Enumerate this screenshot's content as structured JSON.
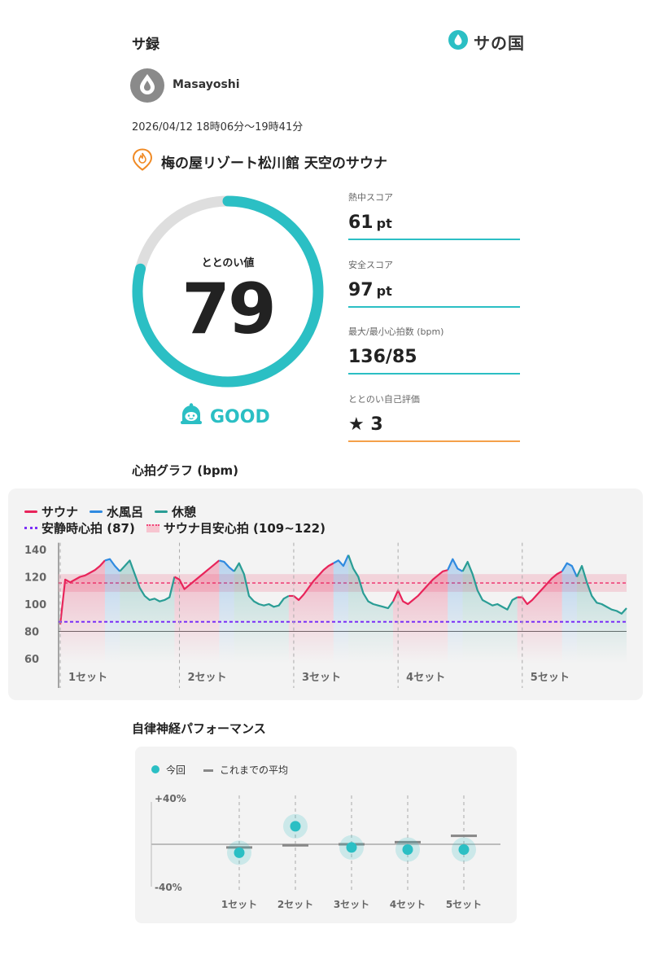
{
  "header": {
    "title": "サ録",
    "brand_name": "サの国",
    "brand_icon": "water-drop-icon"
  },
  "user": {
    "name": "Masayoshi",
    "avatar_icon": "water-drop-icon"
  },
  "session": {
    "datetime": "2026/04/12 18時06分〜19時41分",
    "facility_icon": "fire-pin-icon",
    "facility": "梅の屋リゾート松川館 天空のサウナ"
  },
  "score": {
    "label": "ととのい値",
    "value": "79",
    "progress": 0.79,
    "rating": "GOOD",
    "rating_icon": "bell-face-icon"
  },
  "stats": [
    {
      "label": "熱中スコア",
      "value": "61",
      "unit": "pt"
    },
    {
      "label": "安全スコア",
      "value": "97",
      "unit": "pt"
    },
    {
      "label": "最大/最小心拍数 (bpm)",
      "value": "136/85",
      "unit": ""
    },
    {
      "label": "ととのい自己評価",
      "value": "★ 3",
      "unit": ""
    }
  ],
  "heart_rate": {
    "section_title": "心拍グラフ (bpm)",
    "legend": {
      "sauna": "サウナ",
      "cold_bath": "水風呂",
      "rest": "休憩",
      "resting_hr": "安静時心拍 (87)",
      "sauna_target": "サウナ目安心拍 (109~122)"
    },
    "colors": {
      "sauna": "#e8245a",
      "cold_bath": "#2f8ae0",
      "rest": "#2a9d95",
      "resting": "#7b2ff7",
      "target": "#f0457a"
    },
    "y_ticks": [
      "140",
      "120",
      "100",
      "80",
      "60"
    ],
    "set_labels": [
      "1セット",
      "2セット",
      "3セット",
      "4セット",
      "5セット"
    ]
  },
  "chart_data": {
    "type": "line",
    "title": "心拍グラフ (bpm)",
    "ylim": [
      60,
      145
    ],
    "y_ticks": [
      140,
      120,
      100,
      80,
      60
    ],
    "resting_hr": 87,
    "sauna_target": [
      109,
      122
    ],
    "categories": [
      "1セット",
      "2セット",
      "3セット",
      "4セット",
      "5セット"
    ],
    "sets": [
      {
        "label": "1セット",
        "sauna": [
          85,
          118,
          116,
          118,
          120,
          121,
          123,
          125,
          128,
          132
        ],
        "cold_bath": [
          133,
          128,
          124
        ],
        "rest": [
          128,
          132,
          122,
          112,
          106,
          103,
          104,
          102,
          103,
          105,
          120
        ]
      },
      {
        "label": "2セット",
        "sauna": [
          118,
          111,
          114,
          117,
          120,
          123,
          126,
          129,
          132
        ],
        "cold_bath": [
          131,
          127,
          124
        ],
        "rest": [
          130,
          122,
          106,
          102,
          100,
          99,
          100,
          98,
          99,
          104,
          106
        ]
      },
      {
        "label": "3セット",
        "sauna": [
          106,
          103,
          107,
          112,
          117,
          121,
          125,
          128,
          130
        ],
        "cold_bath": [
          132,
          128,
          136
        ],
        "rest": [
          126,
          120,
          108,
          102,
          100,
          99,
          98,
          97,
          102
        ]
      },
      {
        "label": "4セット",
        "sauna": [
          110,
          102,
          100,
          103,
          106,
          110,
          114,
          118,
          121,
          124,
          125
        ],
        "cold_bath": [
          133,
          126,
          124
        ],
        "rest": [
          131,
          122,
          110,
          103,
          101,
          99,
          100,
          98,
          96,
          103,
          105
        ]
      },
      {
        "label": "5セット",
        "sauna": [
          105,
          100,
          103,
          107,
          111,
          115,
          119,
          122,
          124
        ],
        "cold_bath": [
          130,
          128,
          120
        ],
        "rest": [
          128,
          116,
          106,
          101,
          100,
          98,
          96,
          95,
          93,
          97
        ]
      }
    ]
  },
  "ans": {
    "section_title": "自律神経パフォーマンス",
    "legend_current": "今回",
    "legend_average": "これまでの平均",
    "y_top": "+40%",
    "y_bottom": "-40%",
    "dot_color": "#2bbfc4",
    "avg_color": "#888888"
  },
  "ans_data": {
    "type": "scatter",
    "categories": [
      "1セット",
      "2セット",
      "3セット",
      "4セット",
      "5セット"
    ],
    "current": [
      -8,
      17,
      -3,
      -5,
      -5
    ],
    "average": [
      -3,
      -1,
      0,
      2,
      8
    ],
    "ylim": [
      -40,
      40
    ]
  }
}
